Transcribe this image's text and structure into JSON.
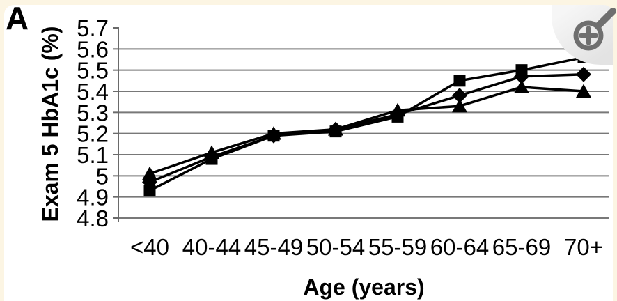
{
  "figure": {
    "panel_label": "A"
  },
  "overlay": {
    "icon": "magnifier-plus-icon",
    "action": "Zoom in"
  },
  "colors": {
    "page_background": "#fcf5e3",
    "card_background": "#ffffff",
    "series": "#000000",
    "gridline": "#787878",
    "axis": "#6a6a6a",
    "overlay_icon": "#6f6f6f",
    "overlay_background": "#e9e9e9"
  },
  "chart_data": {
    "type": "line",
    "title": "",
    "xlabel": "Age (years)",
    "ylabel": "Exam 5 HbA1c (%)",
    "categories": [
      "<40",
      "40-44",
      "45-49",
      "50-54",
      "55-59",
      "60-64",
      "65-69",
      "70+"
    ],
    "yticks": [
      "5.7",
      "5.6",
      "5.5",
      "5.4",
      "5.3",
      "5.2",
      "5.1",
      "5",
      "4.9",
      "4.8"
    ],
    "ylim": [
      4.8,
      5.7
    ],
    "grid": true,
    "legend": "none",
    "series": [
      {
        "name": "square-series",
        "marker": "square",
        "values": [
          4.93,
          5.08,
          5.19,
          5.21,
          5.28,
          5.45,
          5.5,
          5.56
        ]
      },
      {
        "name": "diamond-series",
        "marker": "diamond",
        "values": [
          4.97,
          5.09,
          5.19,
          5.22,
          5.29,
          5.38,
          5.47,
          5.48
        ]
      },
      {
        "name": "triangle-series",
        "marker": "triangle",
        "values": [
          5.01,
          5.11,
          5.2,
          5.22,
          5.31,
          5.33,
          5.42,
          5.4
        ]
      }
    ]
  }
}
